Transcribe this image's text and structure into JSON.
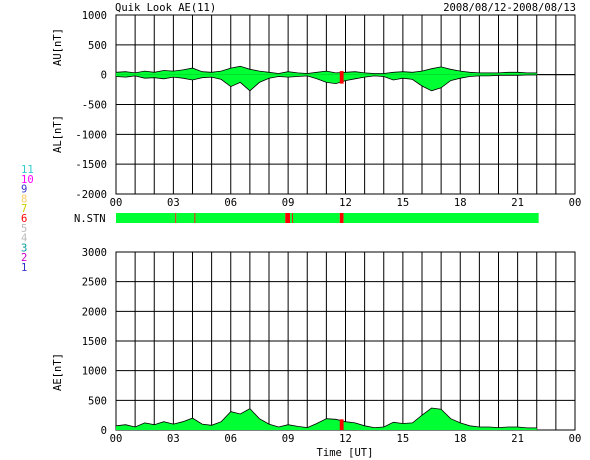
{
  "header": {
    "title": "Quik Look AE(11)",
    "date_range": "2008/08/12-2008/08/13"
  },
  "legend": {
    "station_count_levels": [
      {
        "label": "11",
        "color": "#33cccc"
      },
      {
        "label": "10",
        "color": "#ff00ff"
      },
      {
        "label": "9",
        "color": "#3333cc"
      },
      {
        "label": "8",
        "color": "#ffcc66"
      },
      {
        "label": "7",
        "color": "#cccc00"
      },
      {
        "label": "6",
        "color": "#ff0000"
      },
      {
        "label": "5",
        "color": "#bbbbbb"
      },
      {
        "label": "4",
        "color": "#bbbbbb"
      },
      {
        "label": "3",
        "color": "#009999"
      },
      {
        "label": "2",
        "color": "#cc00cc"
      },
      {
        "label": "1",
        "color": "#3333cc"
      }
    ]
  },
  "colors": {
    "fill": "#00ff33",
    "red": "#ff0000",
    "axis": "#000000",
    "grid": "#000000"
  },
  "chart_data": [
    {
      "type": "area",
      "panel": "AU/AL",
      "ylabel_upper": "AU[nT]",
      "ylabel_lower": "AL[nT]",
      "ylim": [
        -2000,
        1000
      ],
      "yticks": [
        "1000",
        "500",
        "0",
        "-500",
        "-1000",
        "-1500",
        "-2000"
      ],
      "xticks": [
        "00",
        "03",
        "06",
        "09",
        "12",
        "15",
        "18",
        "21",
        "00"
      ],
      "xlim_hours": [
        0,
        24
      ],
      "data_end_hour": 22.1,
      "au_series": {
        "x": [
          0,
          0.5,
          1,
          1.5,
          2,
          2.5,
          3,
          3.5,
          4,
          4.5,
          5,
          5.5,
          6,
          6.5,
          7,
          7.5,
          8,
          8.5,
          9,
          9.5,
          10,
          10.5,
          11,
          11.5,
          12,
          12.5,
          13,
          13.5,
          14,
          14.5,
          15,
          15.5,
          16,
          16.5,
          17,
          17.5,
          18,
          18.5,
          19,
          19.5,
          20,
          20.5,
          21,
          21.5,
          22
        ],
        "values": [
          40,
          50,
          30,
          60,
          40,
          70,
          60,
          80,
          110,
          50,
          40,
          60,
          110,
          140,
          90,
          60,
          40,
          20,
          50,
          30,
          20,
          40,
          60,
          30,
          40,
          50,
          30,
          20,
          20,
          40,
          50,
          40,
          60,
          100,
          130,
          90,
          60,
          40,
          30,
          30,
          30,
          40,
          40,
          30,
          30
        ]
      },
      "al_series": {
        "x": [
          0,
          0.5,
          1,
          1.5,
          2,
          2.5,
          3,
          3.5,
          4,
          4.5,
          5,
          5.5,
          6,
          6.5,
          7,
          7.5,
          8,
          8.5,
          9,
          9.5,
          10,
          10.5,
          11,
          11.5,
          12,
          12.5,
          13,
          13.5,
          14,
          14.5,
          15,
          15.5,
          16,
          16.5,
          17,
          17.5,
          18,
          18.5,
          19,
          19.5,
          20,
          20.5,
          21,
          21.5,
          22
        ],
        "values": [
          -30,
          -40,
          -20,
          -60,
          -50,
          -70,
          -40,
          -60,
          -90,
          -50,
          -40,
          -80,
          -200,
          -130,
          -270,
          -130,
          -60,
          -30,
          -40,
          -30,
          -20,
          -70,
          -130,
          -150,
          -100,
          -70,
          -40,
          -20,
          -30,
          -90,
          -60,
          -80,
          -190,
          -270,
          -220,
          -100,
          -60,
          -30,
          -20,
          -20,
          -10,
          -10,
          -10,
          -5,
          -5
        ]
      }
    },
    {
      "type": "bar",
      "panel": "N.STN",
      "label": "N.STN",
      "xlim_hours": [
        0,
        24
      ],
      "segments": [
        {
          "start": 0,
          "end": 3.1,
          "count": 7
        },
        {
          "start": 3.1,
          "end": 3.15,
          "count": 6
        },
        {
          "start": 3.15,
          "end": 4.1,
          "count": 7
        },
        {
          "start": 4.1,
          "end": 4.15,
          "count": 6
        },
        {
          "start": 4.15,
          "end": 8.85,
          "count": 7
        },
        {
          "start": 8.85,
          "end": 9.1,
          "count": 6
        },
        {
          "start": 9.1,
          "end": 9.2,
          "count": 7
        },
        {
          "start": 9.2,
          "end": 9.25,
          "count": 6
        },
        {
          "start": 9.25,
          "end": 11.7,
          "count": 7
        },
        {
          "start": 11.7,
          "end": 11.9,
          "count": 6
        },
        {
          "start": 11.9,
          "end": 22.1,
          "count": 7
        }
      ]
    },
    {
      "type": "area",
      "panel": "AE",
      "ylabel": "AE[nT]",
      "xlabel": "Time [UT]",
      "ylim": [
        0,
        3000
      ],
      "yticks": [
        "3000",
        "2500",
        "2000",
        "1500",
        "1000",
        "500",
        "0"
      ],
      "xticks": [
        "00",
        "03",
        "06",
        "09",
        "12",
        "15",
        "18",
        "21",
        "00"
      ],
      "xlim_hours": [
        0,
        24
      ],
      "data_end_hour": 22.1,
      "ae_series": {
        "x": [
          0,
          0.5,
          1,
          1.5,
          2,
          2.5,
          3,
          3.5,
          4,
          4.5,
          5,
          5.5,
          6,
          6.5,
          7,
          7.5,
          8,
          8.5,
          9,
          9.5,
          10,
          10.5,
          11,
          11.5,
          12,
          12.5,
          13,
          13.5,
          14,
          14.5,
          15,
          15.5,
          16,
          16.5,
          17,
          17.5,
          18,
          18.5,
          19,
          19.5,
          20,
          20.5,
          21,
          21.5,
          22
        ],
        "values": [
          70,
          90,
          50,
          120,
          90,
          140,
          100,
          140,
          200,
          100,
          80,
          140,
          310,
          270,
          360,
          190,
          100,
          50,
          90,
          60,
          40,
          110,
          190,
          180,
          140,
          120,
          70,
          40,
          50,
          130,
          110,
          120,
          250,
          370,
          350,
          190,
          120,
          70,
          50,
          50,
          40,
          50,
          50,
          35,
          35
        ]
      },
      "red_markers_hours": [
        11.7,
        11.9
      ]
    }
  ]
}
